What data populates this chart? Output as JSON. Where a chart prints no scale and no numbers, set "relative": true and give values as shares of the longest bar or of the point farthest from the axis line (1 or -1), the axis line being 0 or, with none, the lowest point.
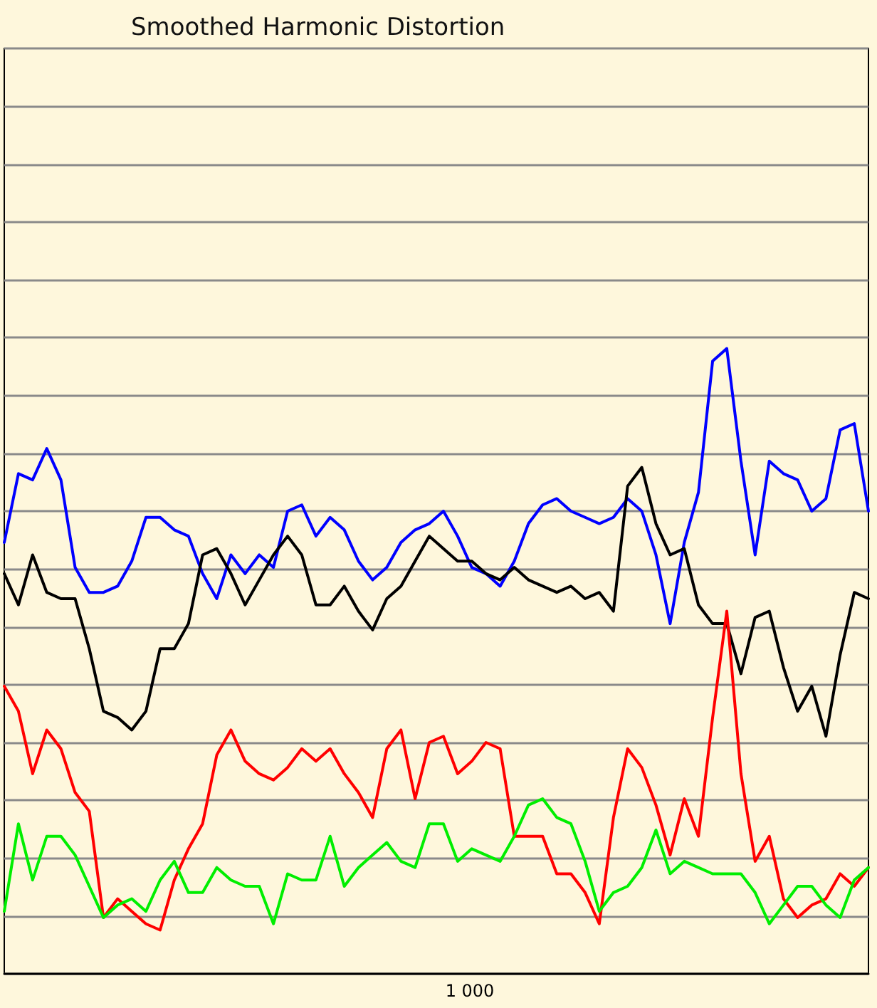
{
  "chart_data": {
    "type": "line",
    "title": "Smoothed Harmonic Distortion",
    "relative": true,
    "grid": "y",
    "marker": "none",
    "line_style": "solid",
    "annotations": [
      "1 000"
    ],
    "categories": [
      null,
      null,
      null,
      null,
      null,
      null,
      null,
      null,
      null,
      null,
      null,
      null,
      null,
      null,
      null,
      null,
      null,
      null,
      null,
      null,
      null,
      null,
      null,
      null,
      null,
      null,
      null,
      null,
      null,
      null,
      null,
      null,
      null,
      null,
      null,
      null,
      null,
      null,
      null,
      null,
      null,
      null,
      null,
      null,
      null,
      null,
      null,
      null,
      null,
      null,
      null,
      null,
      null,
      null,
      null,
      null,
      null,
      null,
      null,
      null,
      null,
      null
    ],
    "series": [
      {
        "color": "#0000ff",
        "values": [
          0.69,
          0.8,
          0.79,
          0.84,
          0.79,
          0.65,
          0.61,
          0.61,
          0.62,
          0.66,
          0.73,
          0.73,
          0.71,
          0.7,
          0.64,
          0.6,
          0.67,
          0.64,
          0.67,
          0.65,
          0.74,
          0.75,
          0.7,
          0.73,
          0.71,
          0.66,
          0.63,
          0.65,
          0.69,
          0.71,
          0.72,
          0.74,
          0.7,
          0.65,
          0.64,
          0.62,
          0.66,
          0.72,
          0.75,
          0.76,
          0.74,
          0.73,
          0.72,
          0.73,
          0.76,
          0.74,
          0.67,
          0.56,
          0.69,
          0.77,
          0.98,
          1.0,
          0.82,
          0.67,
          0.82,
          0.8,
          0.79,
          0.74,
          0.76,
          0.87,
          0.88,
          0.74
        ]
      },
      {
        "color": "#000000",
        "values": [
          0.64,
          0.59,
          0.67,
          0.61,
          0.6,
          0.6,
          0.52,
          0.42,
          0.41,
          0.39,
          0.42,
          0.52,
          0.52,
          0.56,
          0.67,
          0.68,
          0.64,
          0.59,
          0.63,
          0.67,
          0.7,
          0.67,
          0.59,
          0.59,
          0.62,
          0.58,
          0.55,
          0.6,
          0.62,
          0.66,
          0.7,
          0.68,
          0.66,
          0.66,
          0.64,
          0.63,
          0.65,
          0.63,
          0.62,
          0.61,
          0.62,
          0.6,
          0.61,
          0.58,
          0.78,
          0.81,
          0.72,
          0.67,
          0.68,
          0.59,
          0.56,
          0.56,
          0.48,
          0.57,
          0.58,
          0.49,
          0.42,
          0.46,
          0.38,
          0.51,
          0.61,
          0.6
        ]
      },
      {
        "color": "#ff0000",
        "values": [
          0.46,
          0.42,
          0.32,
          0.39,
          0.36,
          0.29,
          0.26,
          0.09,
          0.12,
          0.1,
          0.08,
          0.07,
          0.15,
          0.2,
          0.24,
          0.35,
          0.39,
          0.34,
          0.32,
          0.31,
          0.33,
          0.36,
          0.34,
          0.36,
          0.32,
          0.29,
          0.25,
          0.36,
          0.39,
          0.28,
          0.37,
          0.38,
          0.32,
          0.34,
          0.37,
          0.36,
          0.22,
          0.22,
          0.22,
          0.16,
          0.16,
          0.13,
          0.08,
          0.25,
          0.36,
          0.33,
          0.27,
          0.19,
          0.28,
          0.22,
          0.41,
          0.58,
          0.32,
          0.18,
          0.22,
          0.12,
          0.09,
          0.11,
          0.12,
          0.16,
          0.14,
          0.17
        ]
      },
      {
        "color": "#00ee00",
        "values": [
          0.1,
          0.24,
          0.15,
          0.22,
          0.22,
          0.19,
          0.14,
          0.09,
          0.11,
          0.12,
          0.1,
          0.15,
          0.18,
          0.13,
          0.13,
          0.17,
          0.15,
          0.14,
          0.14,
          0.08,
          0.16,
          0.15,
          0.15,
          0.22,
          0.14,
          0.17,
          0.19,
          0.21,
          0.18,
          0.17,
          0.24,
          0.24,
          0.18,
          0.2,
          0.19,
          0.18,
          0.22,
          0.27,
          0.28,
          0.25,
          0.24,
          0.18,
          0.1,
          0.13,
          0.14,
          0.17,
          0.23,
          0.16,
          0.18,
          0.17,
          0.16,
          0.16,
          0.16,
          0.13,
          0.08,
          0.11,
          0.14,
          0.14,
          0.11,
          0.09,
          0.15,
          0.17
        ]
      }
    ]
  }
}
